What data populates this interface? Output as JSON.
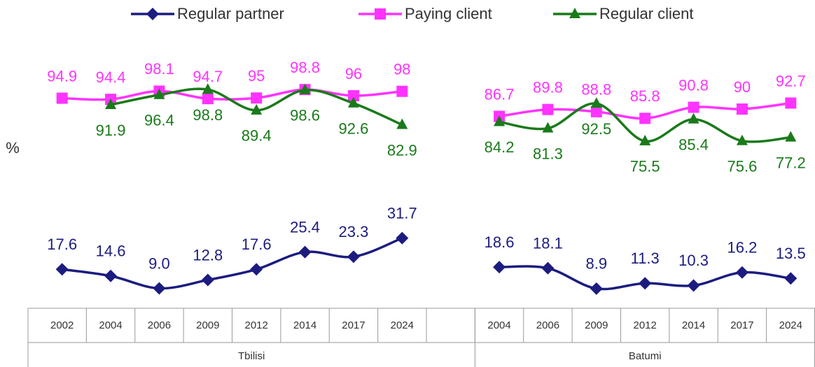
{
  "chart_data": {
    "type": "line",
    "y_axis_label": "%",
    "categories": [
      "2002",
      "2004",
      "2006",
      "2009",
      "2012",
      "2014",
      "2017",
      "2024",
      null,
      "2004",
      "2006",
      "2009",
      "2012",
      "2014",
      "2017",
      "2024"
    ],
    "groups": [
      "Tbilisi",
      "Batumi"
    ],
    "ylim": [
      0,
      120
    ],
    "series": [
      {
        "name": "Regular partner",
        "color": "#1c1c80",
        "marker": "diamond",
        "values": [
          17.6,
          14.6,
          9.0,
          12.8,
          17.6,
          25.4,
          23.3,
          31.7,
          null,
          18.6,
          18.1,
          8.9,
          11.3,
          10.3,
          16.2,
          13.5
        ],
        "value_labels": [
          "17.6",
          "14.6",
          "9.0",
          "12.8",
          "17.6",
          "25.4",
          "23.3",
          "31.7",
          null,
          "18.6",
          "18.1",
          "8.9",
          "11.3",
          "10.3",
          "16.2",
          "13.5"
        ]
      },
      {
        "name": "Paying client",
        "color": "#ff33ff",
        "marker": "square",
        "values": [
          94.9,
          94.4,
          98.1,
          94.7,
          95,
          98.8,
          96,
          98,
          null,
          86.7,
          89.8,
          88.8,
          85.8,
          90.8,
          90,
          92.7
        ]
      },
      {
        "name": "Regular client",
        "color": "#1a7a1a",
        "marker": "triangle",
        "values": [
          null,
          91.9,
          96.4,
          98.8,
          89.4,
          98.6,
          92.6,
          82.9,
          null,
          84.2,
          81.3,
          92.5,
          75.5,
          85.4,
          75.6,
          77.2
        ]
      }
    ]
  }
}
